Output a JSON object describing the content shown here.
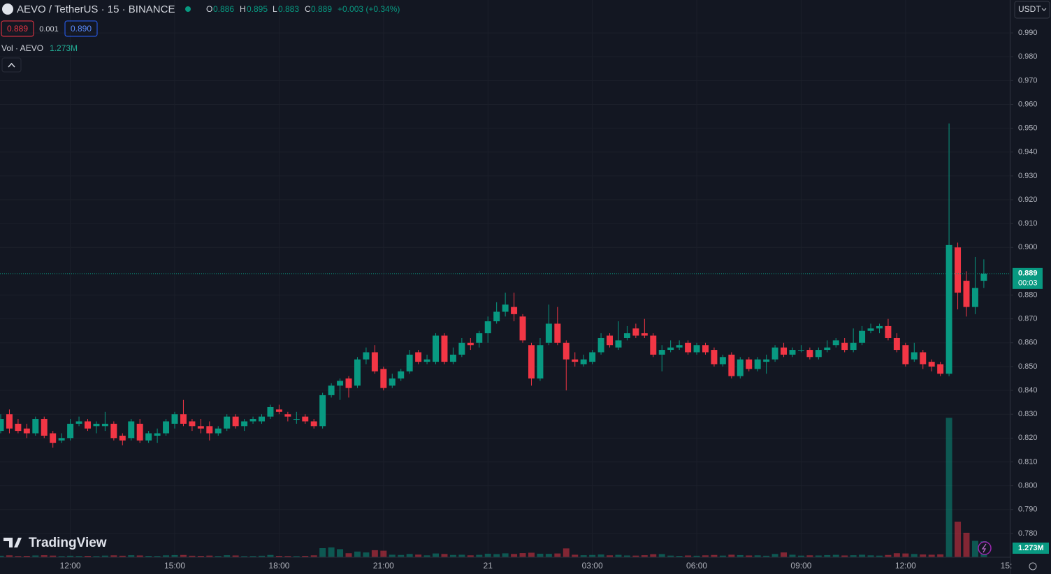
{
  "chart_data": {
    "type": "candlestick",
    "title": "AEVO / TetherUS · 15 · BINANCE",
    "ohlc_legend": {
      "o_label": "O",
      "o": "0.886",
      "h_label": "H",
      "h": "0.895",
      "l_label": "L",
      "l": "0.883",
      "c_label": "C",
      "c": "0.889",
      "change": "+0.003 (+0.34%)"
    },
    "quote_boxes": {
      "bid": "0.889",
      "spread": "0.001",
      "ask": "0.890"
    },
    "volume_legend": {
      "name": "Vol · AEVO",
      "value": "1.273M"
    },
    "currency": "USDT",
    "brand": "TradingView",
    "up_color": "#089981",
    "down_color": "#f23645",
    "open": [
      0.823,
      0.83,
      0.826,
      0.824,
      0.822,
      0.828,
      0.822,
      0.819,
      0.82,
      0.826,
      0.827,
      0.825,
      0.825,
      0.826,
      0.821,
      0.82,
      0.826,
      0.819,
      0.821,
      0.822,
      0.826,
      0.83,
      0.827,
      0.825,
      0.825,
      0.822,
      0.824,
      0.829,
      0.825,
      0.827,
      0.827,
      0.829,
      0.832,
      0.83,
      0.828,
      0.829,
      0.827,
      0.825,
      0.838,
      0.842,
      0.845,
      0.842,
      0.853,
      0.856,
      0.849,
      0.842,
      0.845,
      0.848,
      0.856,
      0.852,
      0.852,
      0.863,
      0.852,
      0.855,
      0.86,
      0.86,
      0.864,
      0.869,
      0.873,
      0.875,
      0.871,
      0.859,
      0.845,
      0.86,
      0.868,
      0.86,
      0.853,
      0.851,
      0.852,
      0.856,
      0.863,
      0.858,
      0.862,
      0.866,
      0.864,
      0.863,
      0.855,
      0.857,
      0.858,
      0.86,
      0.856,
      0.859,
      0.857,
      0.851,
      0.855,
      0.846,
      0.853,
      0.849,
      0.852,
      0.853,
      0.858,
      0.855,
      0.857,
      0.857,
      0.854,
      0.857,
      0.859,
      0.86,
      0.857,
      0.86,
      0.865,
      0.866,
      0.867,
      0.862,
      0.859,
      0.853,
      0.856,
      0.852,
      0.851,
      0.847,
      0.9,
      0.886,
      0.875,
      0.886
    ],
    "high": [
      0.83,
      0.832,
      0.828,
      0.826,
      0.829,
      0.829,
      0.823,
      0.822,
      0.828,
      0.829,
      0.828,
      0.827,
      0.831,
      0.827,
      0.822,
      0.828,
      0.828,
      0.823,
      0.824,
      0.828,
      0.831,
      0.836,
      0.828,
      0.828,
      0.827,
      0.825,
      0.83,
      0.83,
      0.828,
      0.829,
      0.83,
      0.834,
      0.834,
      0.831,
      0.831,
      0.83,
      0.828,
      0.839,
      0.843,
      0.845,
      0.846,
      0.854,
      0.858,
      0.859,
      0.85,
      0.847,
      0.849,
      0.857,
      0.857,
      0.855,
      0.864,
      0.864,
      0.858,
      0.862,
      0.862,
      0.865,
      0.871,
      0.877,
      0.881,
      0.881,
      0.872,
      0.86,
      0.862,
      0.876,
      0.875,
      0.861,
      0.856,
      0.855,
      0.857,
      0.864,
      0.864,
      0.869,
      0.867,
      0.868,
      0.87,
      0.864,
      0.859,
      0.861,
      0.861,
      0.861,
      0.86,
      0.86,
      0.858,
      0.855,
      0.856,
      0.854,
      0.854,
      0.854,
      0.855,
      0.859,
      0.86,
      0.858,
      0.859,
      0.858,
      0.858,
      0.861,
      0.862,
      0.862,
      0.866,
      0.867,
      0.868,
      0.868,
      0.87,
      0.864,
      0.86,
      0.86,
      0.857,
      0.853,
      0.852,
      0.952,
      0.902,
      0.89,
      0.896,
      0.895
    ],
    "low": [
      0.822,
      0.822,
      0.822,
      0.82,
      0.821,
      0.82,
      0.816,
      0.818,
      0.819,
      0.825,
      0.823,
      0.822,
      0.823,
      0.819,
      0.817,
      0.819,
      0.818,
      0.818,
      0.818,
      0.821,
      0.824,
      0.825,
      0.823,
      0.822,
      0.819,
      0.821,
      0.823,
      0.824,
      0.823,
      0.826,
      0.826,
      0.828,
      0.83,
      0.827,
      0.826,
      0.826,
      0.824,
      0.824,
      0.837,
      0.836,
      0.837,
      0.841,
      0.851,
      0.847,
      0.84,
      0.841,
      0.844,
      0.847,
      0.851,
      0.851,
      0.851,
      0.851,
      0.851,
      0.854,
      0.857,
      0.858,
      0.86,
      0.868,
      0.871,
      0.869,
      0.86,
      0.842,
      0.844,
      0.859,
      0.859,
      0.84,
      0.85,
      0.85,
      0.851,
      0.855,
      0.858,
      0.857,
      0.861,
      0.862,
      0.862,
      0.854,
      0.848,
      0.856,
      0.857,
      0.855,
      0.855,
      0.855,
      0.85,
      0.85,
      0.845,
      0.845,
      0.848,
      0.848,
      0.847,
      0.852,
      0.854,
      0.854,
      0.856,
      0.853,
      0.853,
      0.856,
      0.858,
      0.856,
      0.856,
      0.859,
      0.864,
      0.864,
      0.861,
      0.856,
      0.85,
      0.852,
      0.849,
      0.848,
      0.846,
      0.846,
      0.874,
      0.871,
      0.872,
      0.883
    ],
    "close": [
      0.828,
      0.824,
      0.823,
      0.822,
      0.828,
      0.821,
      0.818,
      0.82,
      0.826,
      0.827,
      0.824,
      0.826,
      0.826,
      0.82,
      0.819,
      0.827,
      0.819,
      0.822,
      0.822,
      0.827,
      0.83,
      0.826,
      0.825,
      0.824,
      0.822,
      0.824,
      0.829,
      0.825,
      0.827,
      0.828,
      0.829,
      0.833,
      0.831,
      0.829,
      0.828,
      0.827,
      0.825,
      0.838,
      0.842,
      0.844,
      0.841,
      0.853,
      0.856,
      0.848,
      0.841,
      0.845,
      0.848,
      0.855,
      0.852,
      0.853,
      0.863,
      0.852,
      0.855,
      0.86,
      0.859,
      0.864,
      0.869,
      0.873,
      0.876,
      0.872,
      0.861,
      0.845,
      0.859,
      0.868,
      0.86,
      0.853,
      0.852,
      0.853,
      0.856,
      0.862,
      0.859,
      0.861,
      0.864,
      0.863,
      0.863,
      0.855,
      0.857,
      0.858,
      0.859,
      0.856,
      0.859,
      0.856,
      0.851,
      0.854,
      0.846,
      0.853,
      0.849,
      0.853,
      0.853,
      0.858,
      0.855,
      0.857,
      0.857,
      0.854,
      0.857,
      0.858,
      0.861,
      0.857,
      0.86,
      0.865,
      0.866,
      0.867,
      0.862,
      0.857,
      0.851,
      0.856,
      0.851,
      0.85,
      0.847,
      0.901,
      0.881,
      0.875,
      0.883,
      0.889
    ],
    "volume": [
      120000,
      150000,
      100000,
      110000,
      140000,
      160000,
      130000,
      90000,
      120000,
      100000,
      110000,
      90000,
      130000,
      150000,
      120000,
      160000,
      140000,
      110000,
      100000,
      150000,
      170000,
      180000,
      120000,
      110000,
      130000,
      100000,
      160000,
      140000,
      90000,
      100000,
      120000,
      180000,
      110000,
      100000,
      90000,
      110000,
      150000,
      720000,
      780000,
      640000,
      320000,
      450000,
      380000,
      560000,
      520000,
      200000,
      180000,
      260000,
      210000,
      150000,
      300000,
      260000,
      180000,
      200000,
      150000,
      190000,
      280000,
      250000,
      310000,
      260000,
      330000,
      360000,
      280000,
      270000,
      300000,
      700000,
      200000,
      160000,
      180000,
      220000,
      150000,
      190000,
      140000,
      130000,
      160000,
      240000,
      250000,
      130000,
      110000,
      140000,
      120000,
      150000,
      180000,
      130000,
      200000,
      170000,
      140000,
      150000,
      120000,
      260000,
      380000,
      200000,
      130000,
      150000,
      140000,
      170000,
      190000,
      140000,
      160000,
      200000,
      150000,
      130000,
      180000,
      320000,
      300000,
      260000,
      220000,
      200000,
      230000,
      11050000,
      2820000,
      1940000,
      1300000,
      1273000
    ],
    "volume_lim": [
      0,
      14000000
    ],
    "last_price": {
      "value": 0.889,
      "label": "0.889",
      "countdown": "00:03"
    },
    "last_volume_label": "1.273M",
    "xlim": [
      -0.08,
      116.06
    ],
    "xticks": [
      {
        "value": 8,
        "label": "12:00"
      },
      {
        "value": 20,
        "label": "15:00"
      },
      {
        "value": 32,
        "label": "18:00"
      },
      {
        "value": 44,
        "label": "21:00"
      },
      {
        "value": 56,
        "label": "21"
      },
      {
        "value": 68,
        "label": "03:00"
      },
      {
        "value": 80,
        "label": "06:00"
      },
      {
        "value": 92,
        "label": "09:00"
      },
      {
        "value": 104,
        "label": "12:00"
      },
      {
        "value": 116,
        "label": "15:"
      }
    ],
    "ylim": [
      0.77,
      1.0038
    ],
    "yticks": [
      {
        "value": 0.99,
        "label": "0.990"
      },
      {
        "value": 0.98,
        "label": "0.980"
      },
      {
        "value": 0.97,
        "label": "0.970"
      },
      {
        "value": 0.96,
        "label": "0.960"
      },
      {
        "value": 0.95,
        "label": "0.950"
      },
      {
        "value": 0.94,
        "label": "0.940"
      },
      {
        "value": 0.93,
        "label": "0.930"
      },
      {
        "value": 0.92,
        "label": "0.920"
      },
      {
        "value": 0.91,
        "label": "0.910"
      },
      {
        "value": 0.9,
        "label": "0.900"
      },
      {
        "value": 0.88,
        "label": "0.880"
      },
      {
        "value": 0.87,
        "label": "0.870"
      },
      {
        "value": 0.86,
        "label": "0.860"
      },
      {
        "value": 0.85,
        "label": "0.850"
      },
      {
        "value": 0.84,
        "label": "0.840"
      },
      {
        "value": 0.83,
        "label": "0.830"
      },
      {
        "value": 0.82,
        "label": "0.820"
      },
      {
        "value": 0.81,
        "label": "0.810"
      },
      {
        "value": 0.8,
        "label": "0.800"
      },
      {
        "value": 0.79,
        "label": "0.790"
      },
      {
        "value": 0.78,
        "label": "0.780"
      }
    ],
    "grid": true
  }
}
